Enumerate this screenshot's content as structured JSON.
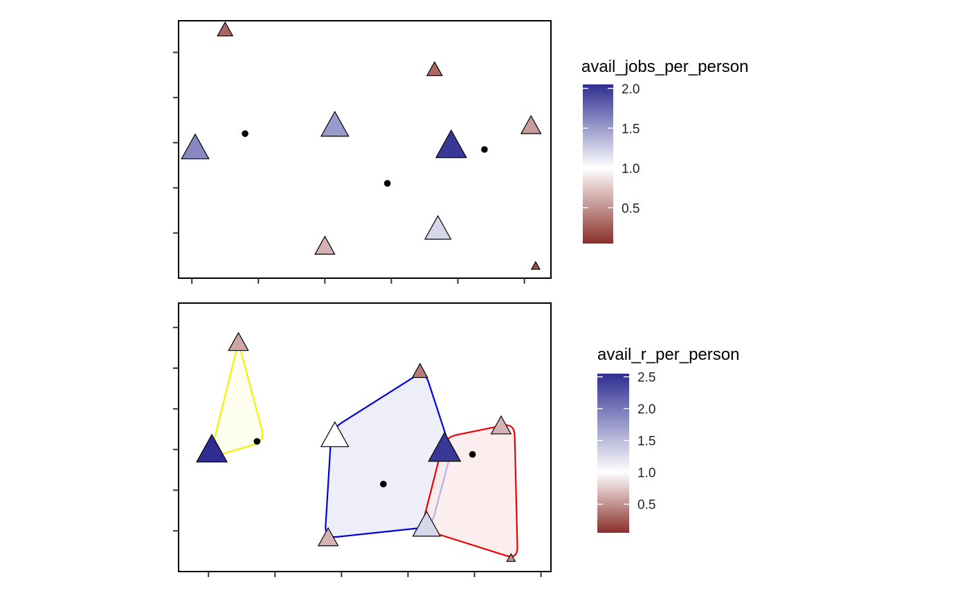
{
  "chart_data": [
    {
      "type": "scatter",
      "panel": "top",
      "xlim": [
        0,
        5.6
      ],
      "ylim": [
        0,
        5.7
      ],
      "xticks": [
        0.2,
        1.2,
        2.2,
        3.2,
        4.2,
        5.2
      ],
      "yticks": [
        1,
        2,
        3,
        4,
        5
      ],
      "grid": false,
      "legend": {
        "title": "avail_jobs_per_person",
        "placement": "right",
        "ticks": [
          "2.0",
          "1.5",
          "1.0",
          "0.5"
        ],
        "tick_values": [
          2.0,
          1.5,
          1.0,
          0.5
        ],
        "range": [
          0.05,
          2.05
        ]
      },
      "locations": [
        {
          "x": 1.0,
          "y": 3.2
        },
        {
          "x": 3.14,
          "y": 2.1
        },
        {
          "x": 4.6,
          "y": 2.85
        }
      ],
      "facilities": [
        {
          "x": 0.7,
          "y": 5.48,
          "value": 0.3,
          "size": 1
        },
        {
          "x": 3.85,
          "y": 4.6,
          "value": 0.3,
          "size": 1
        },
        {
          "x": 5.3,
          "y": 3.35,
          "value": 0.55,
          "size": 1.3
        },
        {
          "x": 0.25,
          "y": 2.85,
          "value": 1.6,
          "size": 1.8
        },
        {
          "x": 2.35,
          "y": 3.35,
          "value": 1.5,
          "size": 1.8
        },
        {
          "x": 4.1,
          "y": 2.9,
          "value": 2.0,
          "size": 2.0
        },
        {
          "x": 2.2,
          "y": 0.68,
          "value": 0.65,
          "size": 1.3
        },
        {
          "x": 3.9,
          "y": 1.06,
          "value": 1.2,
          "size": 1.7
        },
        {
          "x": 5.37,
          "y": 0.26,
          "value": 0.2,
          "size": 0.55
        }
      ]
    },
    {
      "type": "scatter",
      "panel": "bottom",
      "xlim": [
        0,
        5.6
      ],
      "ylim": [
        0,
        6.6
      ],
      "xticks": [
        0.45,
        1.45,
        2.45,
        3.45,
        4.45,
        5.45
      ],
      "yticks": [
        1,
        2,
        3,
        4,
        5,
        6
      ],
      "grid": false,
      "legend": {
        "title": "avail_r_per_person",
        "placement": "right",
        "ticks": [
          "2.5",
          "2.0",
          "1.5",
          "1.0",
          "0.5"
        ],
        "tick_values": [
          2.5,
          2.0,
          1.5,
          1.0,
          0.5
        ],
        "range": [
          0.05,
          2.55
        ]
      },
      "locations": [
        {
          "x": 1.18,
          "y": 3.2,
          "group": "yellow"
        },
        {
          "x": 3.08,
          "y": 2.15,
          "group": "blue"
        },
        {
          "x": 4.42,
          "y": 2.88,
          "group": "red"
        }
      ],
      "facilities": [
        {
          "x": 0.9,
          "y": 5.6,
          "value": 0.6,
          "size": 1.3
        },
        {
          "x": 3.63,
          "y": 4.9,
          "value": 0.4,
          "size": 1
        },
        {
          "x": 0.5,
          "y": 2.95,
          "value": 2.55,
          "size": 2.0
        },
        {
          "x": 2.35,
          "y": 3.3,
          "value": 1.0,
          "size": 1.8
        },
        {
          "x": 4.0,
          "y": 2.98,
          "value": 2.0,
          "size": 2.1
        },
        {
          "x": 4.85,
          "y": 3.55,
          "value": 0.65,
          "size": 1.3
        },
        {
          "x": 2.25,
          "y": 0.8,
          "value": 0.65,
          "size": 1.3
        },
        {
          "x": 3.73,
          "y": 1.1,
          "value": 1.2,
          "size": 1.8
        },
        {
          "x": 5.0,
          "y": 0.32,
          "value": 0.5,
          "size": 0.55
        }
      ],
      "groups": [
        {
          "name": "yellow",
          "color": "#f2f200",
          "fill": "#fefee8",
          "points": [
            [
              0.9,
              5.65
            ],
            [
              1.3,
              3.2
            ],
            [
              0.47,
              2.8
            ]
          ]
        },
        {
          "name": "blue",
          "color": "#0000dd",
          "fill": "#e8e8f7",
          "points": [
            [
              2.3,
              3.5
            ],
            [
              3.7,
              4.95
            ],
            [
              4.1,
              2.95
            ],
            [
              3.8,
              1.1
            ],
            [
              2.2,
              0.82
            ]
          ]
        },
        {
          "name": "red",
          "color": "#ee0000",
          "fill": "#fbe8e8",
          "points": [
            [
              4.0,
              3.3
            ],
            [
              5.05,
              3.65
            ],
            [
              5.1,
              0.3
            ],
            [
              3.65,
              1.05
            ]
          ]
        }
      ]
    }
  ],
  "colors": {
    "low": "#8a2f2a",
    "mid": "#ffffff",
    "high": "#2e2e92",
    "point": "#000000",
    "frame": "#000000"
  }
}
